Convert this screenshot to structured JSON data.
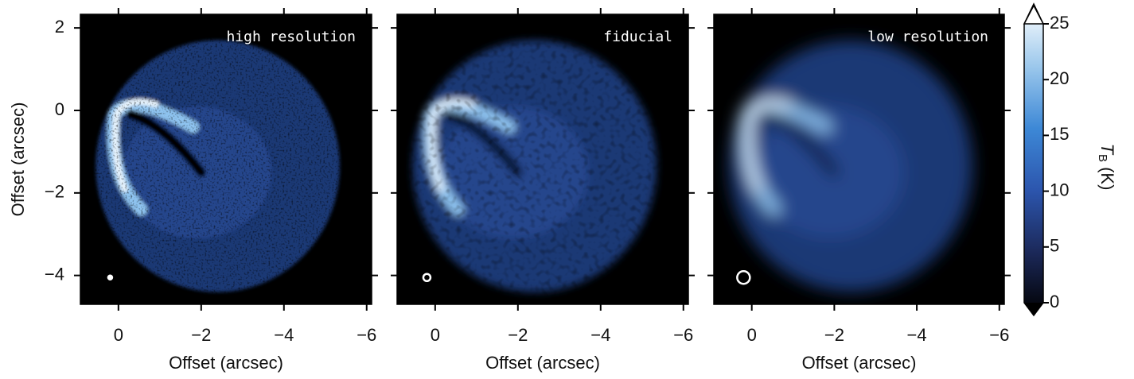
{
  "chart_data": [
    {
      "type": "image",
      "title": "high resolution",
      "xlabel": "Offset (arcsec)",
      "ylabel": "Offset (arcsec)",
      "xlim": [
        0.92,
        -6.12
      ],
      "ylim": [
        -4.7,
        2.33
      ],
      "xticks": [
        0,
        {
          "value": -2,
          "label": "−2"
        },
        {
          "value": -4,
          "label": "−4"
        },
        {
          "value": -6,
          "label": "−6"
        }
      ],
      "yticks": [
        {
          "value": -4,
          "label": "−4"
        },
        {
          "value": -2,
          "label": "−2"
        },
        0,
        2
      ]
    },
    {
      "type": "image",
      "title": "fiducial",
      "xlabel": "Offset (arcsec)",
      "xlim": [
        0.92,
        -6.12
      ],
      "ylim": [
        -4.7,
        2.33
      ],
      "xticks": [
        0,
        {
          "value": -2,
          "label": "−2"
        },
        {
          "value": -4,
          "label": "−4"
        },
        {
          "value": -6,
          "label": "−6"
        }
      ],
      "yticks": [
        -4,
        -2,
        0,
        2
      ]
    },
    {
      "type": "image",
      "title": "low resolution",
      "xlabel": "Offset (arcsec)",
      "xlim": [
        0.92,
        -6.12
      ],
      "ylim": [
        -4.7,
        2.33
      ],
      "xticks": [
        0,
        {
          "value": -2,
          "label": "−2"
        },
        {
          "value": -4,
          "label": "−4"
        },
        {
          "value": -6,
          "label": "−6"
        }
      ],
      "yticks": [
        -4,
        -2,
        0,
        2
      ]
    },
    {
      "type": "colorbar",
      "label": {
        "symbol": "T",
        "subscript": "B",
        "unit": "(K)"
      },
      "ylim": [
        0,
        25
      ],
      "yticks": [
        0,
        5,
        10,
        15,
        20,
        25
      ]
    }
  ]
}
